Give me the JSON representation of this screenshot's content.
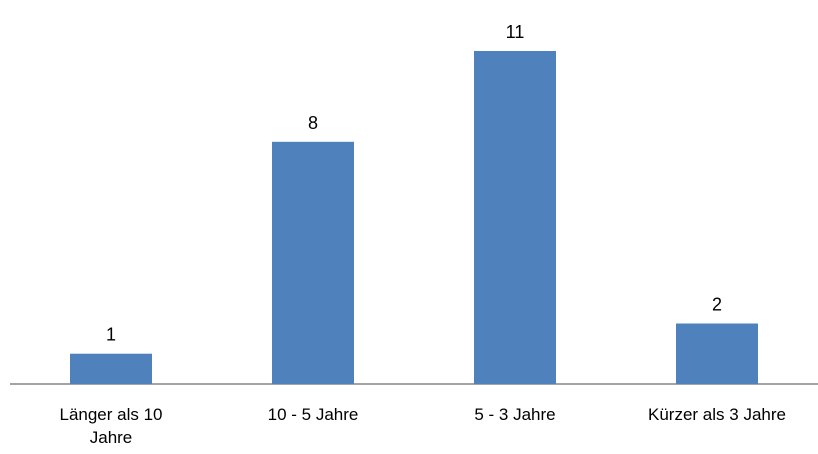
{
  "chart_data": {
    "type": "bar",
    "title": "",
    "xlabel": "",
    "ylabel": "",
    "categories": [
      [
        "Länger als 10",
        "Jahre"
      ],
      [
        "10 - 5 Jahre"
      ],
      [
        "5 - 3 Jahre"
      ],
      [
        "Kürzer als 3 Jahre"
      ]
    ],
    "values": [
      1,
      8,
      11,
      2
    ],
    "data_labels": [
      "1",
      "8",
      "11",
      "2"
    ],
    "ylim": [
      0,
      11
    ],
    "grid": false,
    "legend": "none",
    "colors": {
      "bar": "#4f81bd",
      "axis": "#868686",
      "text": "#000000"
    }
  }
}
